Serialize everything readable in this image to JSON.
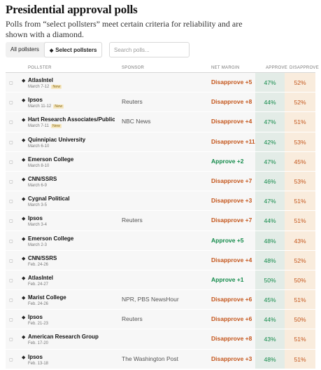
{
  "header": {
    "title": "Presidential approval polls",
    "subtitle": "Polls from “select pollsters” meet certain criteria for reliability and are shown with a diamond."
  },
  "filters": {
    "all_label": "All pollsters",
    "select_label": "Select pollsters",
    "selected": "Select pollsters",
    "diamond_icon": "diamond-icon"
  },
  "search": {
    "placeholder": "Search polls..."
  },
  "table": {
    "headers": {
      "pollster": "POLLSTER",
      "sponsor": "SPONSOR",
      "margin": "NET MARGIN",
      "approve": "APPROVE",
      "disapprove": "DISAPPROVE"
    },
    "rows": [
      {
        "pollster": "AtlasIntel",
        "date": "March 7-12",
        "new": "New",
        "sponsor": "",
        "margin": "Disapprove +5",
        "approve": "47%",
        "disapprove": "52%"
      },
      {
        "pollster": "Ipsos",
        "date": "March 11-12",
        "new": "New",
        "sponsor": "Reuters",
        "margin": "Disapprove +8",
        "approve": "44%",
        "disapprove": "52%"
      },
      {
        "pollster": "Hart Research Associates/Public",
        "date": "March 7-11",
        "new": "New",
        "sponsor": "NBC News",
        "margin": "Disapprove +4",
        "approve": "47%",
        "disapprove": "51%"
      },
      {
        "pollster": "Quinnipiac University",
        "date": "March 6-10",
        "new": "",
        "sponsor": "",
        "margin": "Disapprove +11",
        "approve": "42%",
        "disapprove": "53%"
      },
      {
        "pollster": "Emerson College",
        "date": "March 8-10",
        "new": "",
        "sponsor": "",
        "margin": "Approve +2",
        "approve": "47%",
        "disapprove": "45%"
      },
      {
        "pollster": "CNN/SSRS",
        "date": "March 6-9",
        "new": "",
        "sponsor": "",
        "margin": "Disapprove +7",
        "approve": "46%",
        "disapprove": "53%"
      },
      {
        "pollster": "Cygnal Political",
        "date": "March 3-5",
        "new": "",
        "sponsor": "",
        "margin": "Disapprove +3",
        "approve": "47%",
        "disapprove": "51%"
      },
      {
        "pollster": "Ipsos",
        "date": "March 3-4",
        "new": "",
        "sponsor": "Reuters",
        "margin": "Disapprove +7",
        "approve": "44%",
        "disapprove": "51%"
      },
      {
        "pollster": "Emerson College",
        "date": "March 2-3",
        "new": "",
        "sponsor": "",
        "margin": "Approve +5",
        "approve": "48%",
        "disapprove": "43%"
      },
      {
        "pollster": "CNN/SSRS",
        "date": "Feb. 24-26",
        "new": "",
        "sponsor": "",
        "margin": "Disapprove +4",
        "approve": "48%",
        "disapprove": "52%"
      },
      {
        "pollster": "AtlasIntel",
        "date": "Feb. 24-27",
        "new": "",
        "sponsor": "",
        "margin": "Approve +1",
        "approve": "50%",
        "disapprove": "50%"
      },
      {
        "pollster": "Marist College",
        "date": "Feb. 24-26",
        "new": "",
        "sponsor": "NPR, PBS NewsHour",
        "margin": "Disapprove +6",
        "approve": "45%",
        "disapprove": "51%"
      },
      {
        "pollster": "Ipsos",
        "date": "Feb. 21-23",
        "new": "",
        "sponsor": "Reuters",
        "margin": "Disapprove +6",
        "approve": "44%",
        "disapprove": "50%"
      },
      {
        "pollster": "American Research Group",
        "date": "Feb. 17-20",
        "new": "",
        "sponsor": "",
        "margin": "Disapprove +8",
        "approve": "43%",
        "disapprove": "51%"
      },
      {
        "pollster": "Ipsos",
        "date": "Feb. 13-18",
        "new": "",
        "sponsor": "The Washington Post",
        "margin": "Disapprove +3",
        "approve": "48%",
        "disapprove": "51%"
      }
    ]
  },
  "colors": {
    "approve": "#138a4a",
    "disapprove": "#c4561c",
    "approve_bg": "#e3ece7",
    "disapprove_bg": "#f9ecdd"
  }
}
